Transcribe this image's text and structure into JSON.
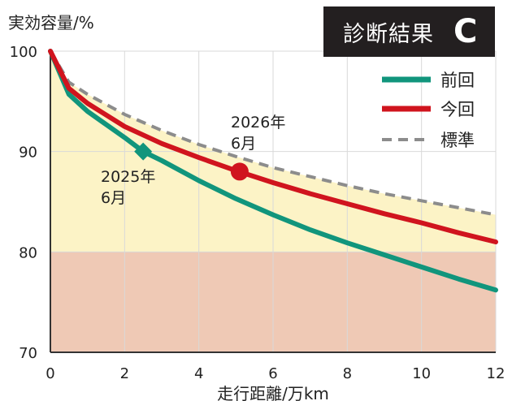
{
  "badge": {
    "label": "診断結果",
    "grade": "C"
  },
  "colors": {
    "previous": "#11957c",
    "current": "#d0141e",
    "standard": "#8c8c8c",
    "zone_normal": "#fcf3c6",
    "zone_low": "#efc9b5",
    "badge_bg": "#231f20"
  },
  "chart_data": {
    "type": "line",
    "ylabel": "実効容量/%",
    "xlabel": "走行距離/万km",
    "xlim": [
      0,
      12
    ],
    "ylim": [
      70,
      100
    ],
    "xticks": [
      "0",
      "2",
      "4",
      "6",
      "8",
      "10",
      "12"
    ],
    "yticks": [
      "70",
      "80",
      "90",
      "100"
    ],
    "grid": true,
    "legend_position": "top-right",
    "zones": [
      {
        "from": 80,
        "to": 100,
        "color": "#fcf3c6"
      },
      {
        "from": 70,
        "to": 80,
        "color": "#efc9b5"
      }
    ],
    "series": [
      {
        "name": "前回",
        "style": "solid",
        "color": "#11957c",
        "x": [
          0,
          0.5,
          1,
          2,
          2.5,
          3,
          4,
          5,
          6,
          7,
          8,
          9,
          10,
          11,
          12
        ],
        "y": [
          100,
          95.7,
          94.0,
          91.4,
          90.0,
          89.1,
          87.1,
          85.3,
          83.7,
          82.2,
          80.9,
          79.7,
          78.5,
          77.3,
          76.2
        ]
      },
      {
        "name": "今回",
        "style": "solid",
        "color": "#d0141e",
        "x": [
          0,
          0.5,
          1,
          2,
          3,
          4,
          5,
          6,
          7,
          8,
          9,
          10,
          11,
          12
        ],
        "y": [
          100,
          96.3,
          94.8,
          92.5,
          90.8,
          89.4,
          88.1,
          86.9,
          85.8,
          84.8,
          83.8,
          82.9,
          81.9,
          81.0
        ]
      },
      {
        "name": "標準",
        "style": "dashed",
        "color": "#8c8c8c",
        "x": [
          0,
          0.5,
          1,
          2,
          3,
          4,
          5,
          6,
          7,
          8,
          9,
          10,
          11,
          12
        ],
        "y": [
          100,
          96.9,
          95.7,
          93.7,
          92.1,
          90.7,
          89.5,
          88.4,
          87.5,
          86.6,
          85.8,
          85.1,
          84.4,
          83.7
        ]
      }
    ],
    "markers": [
      {
        "series": "前回",
        "shape": "diamond",
        "x": 2.5,
        "y": 90.0,
        "label_lines": [
          "2025年",
          "6月"
        ]
      },
      {
        "series": "今回",
        "shape": "circle",
        "x": 5.1,
        "y": 88.0,
        "label_lines": [
          "2026年",
          "6月"
        ]
      }
    ]
  }
}
